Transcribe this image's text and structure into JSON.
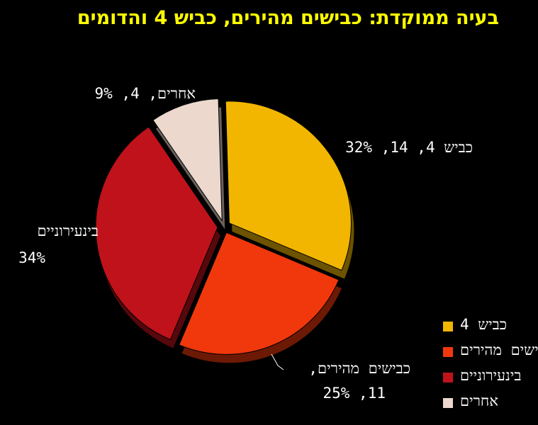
{
  "title": "בעיה ממוקדת: כבישים מהירים, כביש 4 והדומים",
  "chart_data": {
    "type": "pie",
    "title": "בעיה ממוקדת: כבישים מהירים, כביש 4 והדומים",
    "slices": [
      {
        "name": "כביש 4",
        "value": 14,
        "percent": 32,
        "color": "#f2b600",
        "label_line1": "כביש 4, 14, 32%",
        "label_line2": ""
      },
      {
        "name": "כבישים מהירים",
        "value": 11,
        "percent": 25,
        "color": "#f0380c",
        "label_line1": "כבישים מהירים,",
        "label_line2": "11, 25%"
      },
      {
        "name": "בינעירוניים",
        "value": 15,
        "percent": 34,
        "color": "#c0121a",
        "label_line1": "בינעירוניים",
        "label_line2": "34%"
      },
      {
        "name": "אחרים",
        "value": 4,
        "percent": 9,
        "color": "#ecd8cc",
        "label_line1": "אחרים, 4, 9%",
        "label_line2": ""
      }
    ],
    "legend_position": "bottom-right"
  }
}
